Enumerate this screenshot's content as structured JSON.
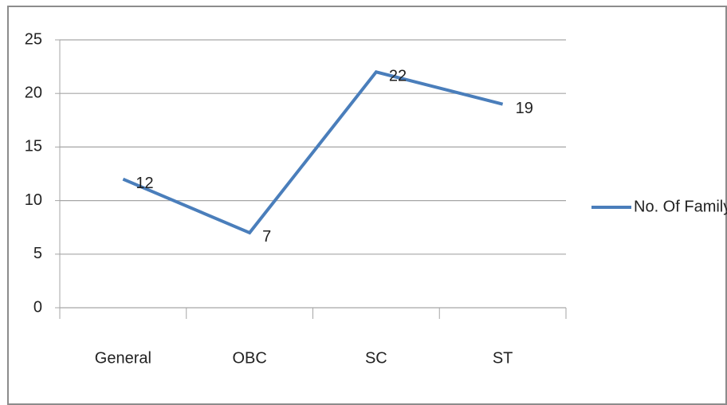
{
  "chart_data": {
    "type": "line",
    "categories": [
      "General",
      "OBC",
      "SC",
      "ST"
    ],
    "series": [
      {
        "name": "No. Of Family",
        "color": "#4a7ebb",
        "values": [
          12,
          7,
          22,
          19
        ]
      }
    ],
    "ylim": [
      0,
      25
    ],
    "yticks": [
      0,
      5,
      10,
      15,
      20,
      25
    ],
    "grid": true,
    "legend": "right"
  }
}
